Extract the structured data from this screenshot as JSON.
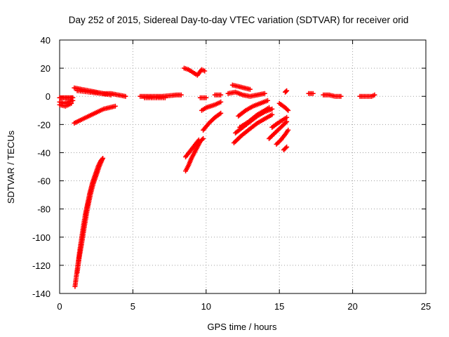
{
  "chart_data": {
    "type": "scatter",
    "title": "Day 252 of 2015, Sidereal Day-to-day VTEC variation (SDTVAR) for receiver orid",
    "xlabel": "GPS time / hours",
    "ylabel": "SDTVAR / TECUs",
    "xlim": [
      0,
      25
    ],
    "ylim": [
      -140,
      40
    ],
    "xticks": [
      0,
      5,
      10,
      15,
      20,
      25
    ],
    "yticks": [
      -140,
      -120,
      -100,
      -80,
      -60,
      -40,
      -20,
      0,
      20,
      40
    ],
    "xtick_labels": [
      "0",
      "5",
      "10",
      "15",
      "20",
      "25"
    ],
    "ytick_labels": [
      "-140",
      "-120",
      "-100",
      "-80",
      "-60",
      "-40",
      "-20",
      "0",
      "20",
      "40"
    ],
    "grid": true,
    "marker": "+",
    "series": [
      {
        "name": "SDTVAR",
        "color": "#ff0000",
        "tracks": [
          {
            "points": [
              [
                0.0,
                -1
              ],
              [
                0.25,
                -1
              ],
              [
                0.5,
                -1
              ],
              [
                0.75,
                -1
              ],
              [
                0.9,
                -1
              ]
            ]
          },
          {
            "points": [
              [
                0.0,
                -4
              ],
              [
                0.3,
                -5
              ],
              [
                0.6,
                -4
              ],
              [
                0.9,
                -3
              ]
            ]
          },
          {
            "points": [
              [
                0.0,
                -6
              ],
              [
                0.4,
                -7
              ],
              [
                0.8,
                -5
              ]
            ]
          },
          {
            "points": [
              [
                1.0,
                6
              ],
              [
                1.5,
                5
              ],
              [
                2.0,
                4
              ],
              [
                2.5,
                3
              ],
              [
                3.0,
                2
              ],
              [
                3.5,
                2
              ],
              [
                4.0,
                1
              ],
              [
                4.5,
                0
              ]
            ]
          },
          {
            "points": [
              [
                1.2,
                4
              ],
              [
                2.0,
                3
              ],
              [
                2.8,
                2
              ],
              [
                3.5,
                1
              ]
            ]
          },
          {
            "points": [
              [
                1.0,
                -19
              ],
              [
                1.4,
                -17
              ],
              [
                1.8,
                -15
              ],
              [
                2.2,
                -13
              ],
              [
                2.6,
                -11
              ],
              [
                3.0,
                -9
              ],
              [
                3.4,
                -8
              ],
              [
                3.8,
                -7
              ]
            ]
          },
          {
            "points": [
              [
                1.05,
                -135
              ],
              [
                1.15,
                -127
              ],
              [
                1.25,
                -119
              ],
              [
                1.35,
                -111
              ],
              [
                1.45,
                -104
              ],
              [
                1.55,
                -97
              ],
              [
                1.65,
                -90
              ],
              [
                1.75,
                -84
              ],
              [
                1.85,
                -79
              ],
              [
                1.95,
                -74
              ],
              [
                2.05,
                -69
              ],
              [
                2.15,
                -65
              ],
              [
                2.25,
                -61
              ],
              [
                2.35,
                -58
              ],
              [
                2.45,
                -55
              ],
              [
                2.55,
                -52
              ],
              [
                2.65,
                -49
              ],
              [
                2.8,
                -46
              ],
              [
                2.95,
                -44
              ]
            ]
          },
          {
            "points": [
              [
                1.2,
                -125
              ],
              [
                1.35,
                -114
              ],
              [
                1.5,
                -105
              ],
              [
                1.7,
                -92
              ],
              [
                1.9,
                -80
              ],
              [
                2.1,
                -70
              ],
              [
                2.3,
                -62
              ],
              [
                2.5,
                -56
              ],
              [
                2.7,
                -50
              ],
              [
                2.9,
                -45
              ]
            ]
          },
          {
            "points": [
              [
                5.5,
                0
              ],
              [
                6.0,
                0
              ],
              [
                6.5,
                0
              ],
              [
                7.0,
                0
              ],
              [
                7.5,
                0.5
              ],
              [
                8.0,
                1
              ],
              [
                8.3,
                1
              ]
            ]
          },
          {
            "points": [
              [
                5.8,
                -1
              ],
              [
                6.5,
                -1
              ],
              [
                7.2,
                -1
              ]
            ]
          },
          {
            "points": [
              [
                8.5,
                20
              ],
              [
                8.8,
                19
              ],
              [
                9.1,
                17
              ],
              [
                9.4,
                15
              ],
              [
                9.7,
                19
              ],
              [
                9.9,
                18
              ]
            ]
          },
          {
            "points": [
              [
                8.6,
                -53
              ],
              [
                8.8,
                -49
              ],
              [
                9.0,
                -44
              ],
              [
                9.2,
                -40
              ],
              [
                9.4,
                -36
              ],
              [
                9.6,
                -32
              ],
              [
                9.8,
                -30
              ]
            ]
          },
          {
            "points": [
              [
                8.6,
                -43
              ],
              [
                8.9,
                -39
              ],
              [
                9.2,
                -35
              ],
              [
                9.5,
                -31
              ]
            ]
          },
          {
            "points": [
              [
                9.8,
                -24
              ],
              [
                10.2,
                -19
              ],
              [
                10.6,
                -15
              ],
              [
                11.0,
                -12
              ]
            ]
          },
          {
            "points": [
              [
                9.7,
                -10
              ],
              [
                10.0,
                -8
              ],
              [
                10.3,
                -7
              ],
              [
                10.6,
                -6
              ],
              [
                11.0,
                -4
              ]
            ]
          },
          {
            "points": [
              [
                9.6,
                -1
              ],
              [
                10.0,
                -1
              ]
            ]
          },
          {
            "points": [
              [
                10.6,
                1
              ],
              [
                11.0,
                1
              ]
            ]
          },
          {
            "points": [
              [
                11.5,
                2
              ],
              [
                12.0,
                3
              ],
              [
                12.5,
                1
              ],
              [
                13.0,
                0
              ],
              [
                13.5,
                1
              ],
              [
                14.0,
                2
              ]
            ]
          },
          {
            "points": [
              [
                11.8,
                8
              ],
              [
                12.2,
                7
              ],
              [
                12.6,
                6
              ],
              [
                13.0,
                5
              ]
            ]
          },
          {
            "points": [
              [
                11.9,
                -33
              ],
              [
                12.4,
                -28
              ],
              [
                13.0,
                -23
              ],
              [
                13.5,
                -19
              ],
              [
                14.0,
                -16
              ],
              [
                14.5,
                -13
              ]
            ]
          },
          {
            "points": [
              [
                12.0,
                -26
              ],
              [
                12.5,
                -22
              ],
              [
                13.0,
                -18
              ],
              [
                13.5,
                -14
              ],
              [
                14.0,
                -11
              ],
              [
                14.5,
                -9
              ]
            ]
          },
          {
            "points": [
              [
                12.2,
                -14
              ],
              [
                12.7,
                -10
              ],
              [
                13.2,
                -7
              ],
              [
                13.7,
                -5
              ],
              [
                14.2,
                -3
              ]
            ]
          },
          {
            "points": [
              [
                12.3,
                -22
              ],
              [
                12.9,
                -18
              ],
              [
                13.5,
                -13
              ],
              [
                14.0,
                -10
              ],
              [
                14.3,
                -8
              ]
            ]
          },
          {
            "points": [
              [
                14.3,
                -30
              ],
              [
                14.6,
                -27
              ],
              [
                14.9,
                -24
              ],
              [
                15.2,
                -21
              ],
              [
                15.5,
                -18
              ]
            ]
          },
          {
            "points": [
              [
                14.5,
                -22
              ],
              [
                14.9,
                -19
              ],
              [
                15.2,
                -17
              ],
              [
                15.5,
                -15
              ]
            ]
          },
          {
            "points": [
              [
                14.8,
                -34
              ],
              [
                15.1,
                -31
              ],
              [
                15.4,
                -27
              ],
              [
                15.6,
                -24
              ]
            ]
          },
          {
            "points": [
              [
                15.0,
                -5
              ],
              [
                15.4,
                -8
              ],
              [
                15.6,
                -10
              ]
            ]
          },
          {
            "points": [
              [
                15.3,
                -38
              ],
              [
                15.5,
                -36
              ]
            ]
          },
          {
            "points": [
              [
                15.4,
                3
              ],
              [
                15.5,
                4
              ]
            ]
          },
          {
            "points": [
              [
                17.0,
                2
              ],
              [
                17.3,
                2
              ]
            ]
          },
          {
            "points": [
              [
                18.0,
                1
              ],
              [
                18.4,
                1
              ],
              [
                18.8,
                0
              ],
              [
                19.2,
                0
              ]
            ]
          },
          {
            "points": [
              [
                20.5,
                0
              ],
              [
                20.8,
                0
              ],
              [
                21.3,
                0
              ],
              [
                21.5,
                1
              ]
            ]
          }
        ]
      }
    ]
  }
}
